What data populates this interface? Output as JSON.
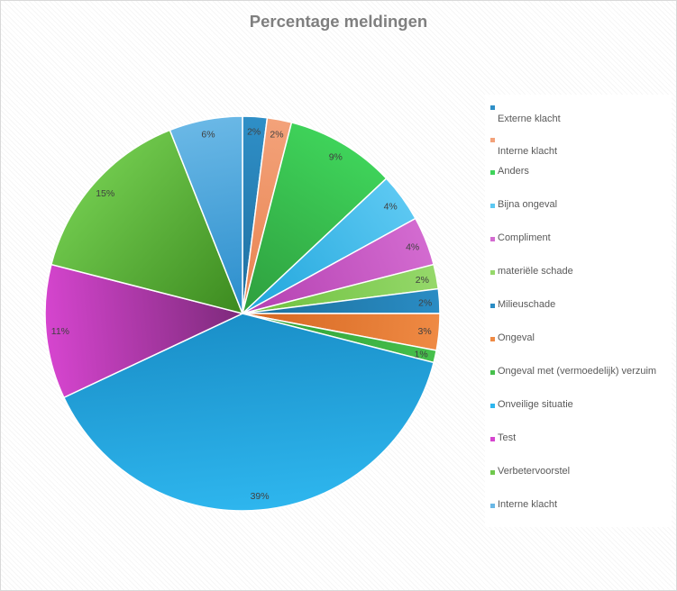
{
  "chart_data": {
    "type": "pie",
    "title": "Percentage meldingen",
    "legend_position": "right",
    "slices": [
      {
        "name": "Externe klacht",
        "value": 2,
        "label": "2%",
        "color": "#1f6fa0",
        "color2": "#2f8fc7"
      },
      {
        "name": "Interne klacht",
        "value": 2,
        "label": "2%",
        "color": "#e8834f",
        "color2": "#f3a27a"
      },
      {
        "name": "Anders",
        "value": 9,
        "label": "9%",
        "color": "#2e9e3e",
        "color2": "#3fd35a"
      },
      {
        "name": "Bijna ongeval",
        "value": 4,
        "label": "4%",
        "color": "#1fa5db",
        "color2": "#5cc8f2"
      },
      {
        "name": "Compliment",
        "value": 4,
        "label": "4%",
        "color": "#b33fb0",
        "color2": "#d36bd0"
      },
      {
        "name": "materiële schade",
        "value": 2,
        "label": "2%",
        "color": "#6cbf3c",
        "color2": "#95d86a"
      },
      {
        "name": "Milieuschade",
        "value": 2,
        "label": "2%",
        "color": "#1b6f9c",
        "color2": "#2a8cc4"
      },
      {
        "name": "Ongeval",
        "value": 3,
        "label": "3%",
        "color": "#d4651f",
        "color2": "#ef8a44"
      },
      {
        "name": "Ongeval met (vermoedelijk) verzuim",
        "value": 1,
        "label": "1%",
        "color": "#2f9e35",
        "color2": "#46c04c"
      },
      {
        "name": "Onveilige situatie",
        "value": 39,
        "label": "39%",
        "color": "#1a8fc8",
        "color2": "#2eb6ee"
      },
      {
        "name": "Test",
        "value": 11,
        "label": "11%",
        "color": "#7d2a7b",
        "color2": "#d645cf"
      },
      {
        "name": "Verbetervoorstel",
        "value": 15,
        "label": "15%",
        "color": "#3c8a1f",
        "color2": "#6fc84c"
      },
      {
        "name": "Interne klacht",
        "value": 6,
        "label": "6%",
        "color": "#2a8dcc",
        "color2": "#6ab8e6"
      }
    ]
  }
}
